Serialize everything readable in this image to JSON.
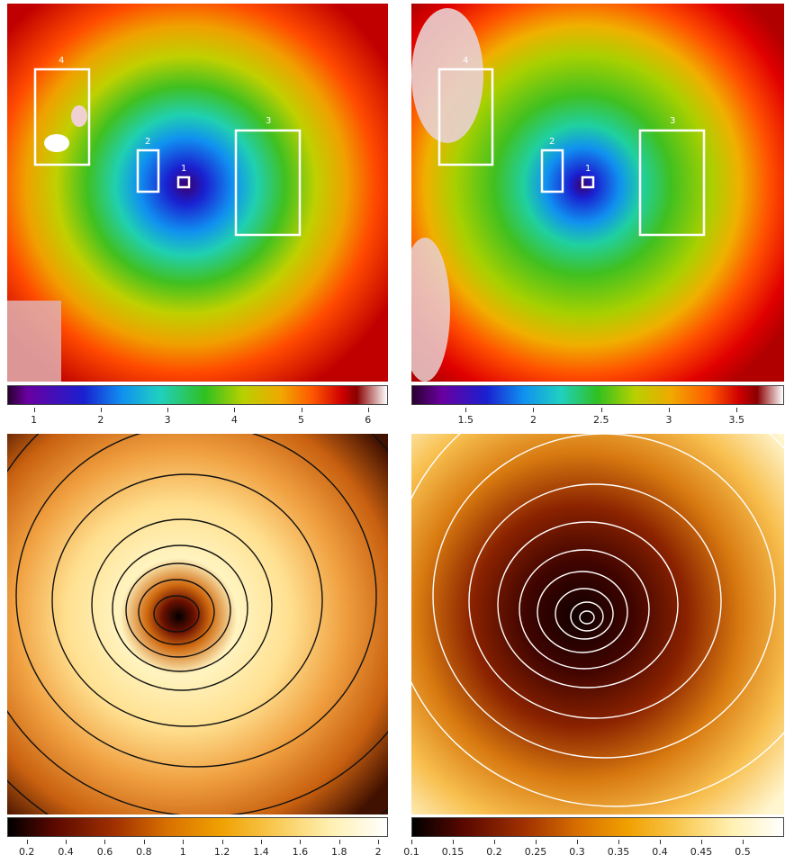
{
  "panels": [
    {
      "id": "top-left",
      "map_type": "rainbow",
      "region_labels": [
        "1",
        "2",
        "3",
        "4"
      ],
      "colorbar": {
        "min": 0.6,
        "max": 6.3,
        "ticks": [
          {
            "v": 1,
            "label": "1"
          },
          {
            "v": 2,
            "label": "2"
          },
          {
            "v": 3,
            "label": "3"
          },
          {
            "v": 4,
            "label": "4"
          },
          {
            "v": 5,
            "label": "5"
          },
          {
            "v": 6,
            "label": "6"
          }
        ]
      }
    },
    {
      "id": "top-right",
      "map_type": "rainbow",
      "region_labels": [
        "1",
        "2",
        "3",
        "4"
      ],
      "colorbar": {
        "min": 1.1,
        "max": 3.85,
        "ticks": [
          {
            "v": 1.5,
            "label": "1.5"
          },
          {
            "v": 2,
            "label": "2"
          },
          {
            "v": 2.5,
            "label": "2.5"
          },
          {
            "v": 3,
            "label": "3"
          },
          {
            "v": 3.5,
            "label": "3.5"
          }
        ]
      }
    },
    {
      "id": "bottom-left",
      "map_type": "heat",
      "contour_color": "#111111",
      "colorbar": {
        "min": 0.1,
        "max": 2.05,
        "ticks": [
          {
            "v": 0.2,
            "label": "0.2"
          },
          {
            "v": 0.4,
            "label": "0.4"
          },
          {
            "v": 0.6,
            "label": "0.6"
          },
          {
            "v": 0.8,
            "label": "0.8"
          },
          {
            "v": 1,
            "label": "1"
          },
          {
            "v": 1.2,
            "label": "1.2"
          },
          {
            "v": 1.4,
            "label": "1.4"
          },
          {
            "v": 1.6,
            "label": "1.6"
          },
          {
            "v": 1.8,
            "label": "1.8"
          },
          {
            "v": 2,
            "label": "2"
          }
        ]
      }
    },
    {
      "id": "bottom-right",
      "map_type": "heat",
      "contour_color": "#ffffff",
      "colorbar": {
        "min": 0.1,
        "max": 0.55,
        "ticks": [
          {
            "v": 0.1,
            "label": "0.1"
          },
          {
            "v": 0.15,
            "label": "0.15"
          },
          {
            "v": 0.2,
            "label": "0.2"
          },
          {
            "v": 0.25,
            "label": "0.25"
          },
          {
            "v": 0.3,
            "label": "0.3"
          },
          {
            "v": 0.35,
            "label": "0.35"
          },
          {
            "v": 0.4,
            "label": "0.4"
          },
          {
            "v": 0.45,
            "label": "0.45"
          },
          {
            "v": 0.5,
            "label": "0.5"
          }
        ]
      }
    }
  ],
  "colors": {
    "rainbow": [
      "#2a0030",
      "#6a00a0",
      "#1a20d0",
      "#1090f0",
      "#20d0c0",
      "#30c020",
      "#b8d000",
      "#f0a800",
      "#ff5a00",
      "#d00000",
      "#8a0000",
      "#ffffff"
    ],
    "heat": [
      "#000000",
      "#3a0000",
      "#8a2000",
      "#c85a00",
      "#f08c00",
      "#f8c040",
      "#fff0a0",
      "#ffffff"
    ]
  }
}
